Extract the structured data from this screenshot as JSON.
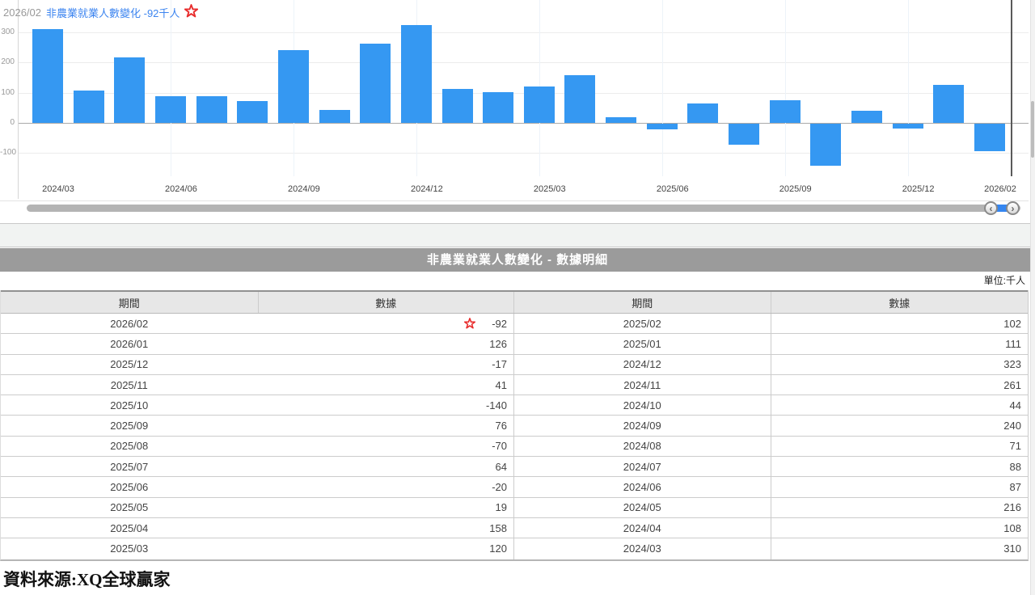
{
  "chart": {
    "title_period": "2026/02",
    "title_label": "非農業就業人數變化 -92千人",
    "bar_color": "#3598f2",
    "title_color": "#3d85f0",
    "star_color": "#e82c2c"
  },
  "chart_data": {
    "type": "bar",
    "title": "非農業就業人數變化",
    "unit": "千人",
    "x": [
      "2024/03",
      "2024/04",
      "2024/05",
      "2024/06",
      "2024/07",
      "2024/08",
      "2024/09",
      "2024/10",
      "2024/11",
      "2024/12",
      "2025/01",
      "2025/02",
      "2025/03",
      "2025/04",
      "2025/05",
      "2025/06",
      "2025/07",
      "2025/08",
      "2025/09",
      "2025/10",
      "2025/11",
      "2025/12",
      "2026/01",
      "2026/02"
    ],
    "values": [
      310,
      108,
      216,
      87,
      88,
      71,
      240,
      44,
      261,
      323,
      111,
      102,
      120,
      158,
      19,
      -20,
      64,
      -70,
      76,
      -140,
      41,
      -17,
      126,
      -92
    ],
    "y_ticks": [
      300,
      200,
      100,
      0,
      -100
    ],
    "x_tick_indices": [
      0,
      3,
      6,
      9,
      12,
      15,
      18,
      21,
      23
    ],
    "grid_v_indices": [
      3,
      6,
      9,
      12,
      15,
      18,
      21
    ],
    "ylim": [
      -176,
      400
    ],
    "latest": {
      "period": "2026/02",
      "value": -92
    },
    "legend_position": "none",
    "grid": true
  },
  "hscrollbar": {
    "left_arrow": "‹",
    "right_arrow": "›"
  },
  "table": {
    "band_title": "非農業就業人數變化 - 數據明細",
    "unit_label": "單位:千人",
    "col_headers": [
      "期間",
      "數據",
      "期間",
      "數據"
    ],
    "rows": [
      {
        "p1": "2026/02",
        "v1": "-92",
        "p2": "2025/02",
        "v2": "102",
        "starred": true
      },
      {
        "p1": "2026/01",
        "v1": "126",
        "p2": "2025/01",
        "v2": "111",
        "starred": false
      },
      {
        "p1": "2025/12",
        "v1": "-17",
        "p2": "2024/12",
        "v2": "323",
        "starred": false
      },
      {
        "p1": "2025/11",
        "v1": "41",
        "p2": "2024/11",
        "v2": "261",
        "starred": false
      },
      {
        "p1": "2025/10",
        "v1": "-140",
        "p2": "2024/10",
        "v2": "44",
        "starred": false
      },
      {
        "p1": "2025/09",
        "v1": "76",
        "p2": "2024/09",
        "v2": "240",
        "starred": false
      },
      {
        "p1": "2025/08",
        "v1": "-70",
        "p2": "2024/08",
        "v2": "71",
        "starred": false
      },
      {
        "p1": "2025/07",
        "v1": "64",
        "p2": "2024/07",
        "v2": "88",
        "starred": false
      },
      {
        "p1": "2025/06",
        "v1": "-20",
        "p2": "2024/06",
        "v2": "87",
        "starred": false
      },
      {
        "p1": "2025/05",
        "v1": "19",
        "p2": "2024/05",
        "v2": "216",
        "starred": false
      },
      {
        "p1": "2025/04",
        "v1": "158",
        "p2": "2024/04",
        "v2": "108",
        "starred": false
      },
      {
        "p1": "2025/03",
        "v1": "120",
        "p2": "2024/03",
        "v2": "310",
        "starred": false
      }
    ]
  },
  "source": "資料來源:XQ全球贏家"
}
